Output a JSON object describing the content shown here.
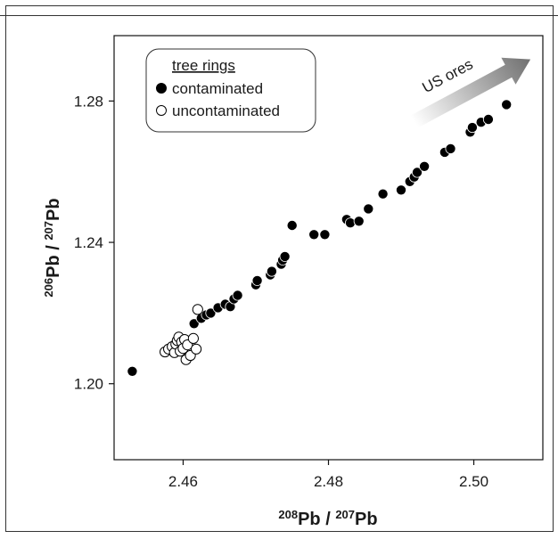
{
  "chart_data": {
    "type": "scatter",
    "xlabel": {
      "sup": "208",
      "main": "Pb / ",
      "sup2": "207",
      "tail": "Pb"
    },
    "ylabel": {
      "sup": "206",
      "main": "Pb / ",
      "sup2": "207",
      "tail": "Pb"
    },
    "xlim": [
      2.4505,
      2.5095
    ],
    "ylim": [
      1.1785,
      1.2985
    ],
    "xticks": [
      2.46,
      2.48,
      2.5
    ],
    "xtick_labels": [
      "2.46",
      "2.48",
      "2.50"
    ],
    "yticks": [
      1.2,
      1.24,
      1.28
    ],
    "ytick_labels": [
      "1.20",
      "1.24",
      "1.28"
    ],
    "grid": false,
    "legend": {
      "title": "tree rings",
      "placement": "top-left",
      "entries": [
        "contaminated",
        "uncontaminated"
      ]
    },
    "annotation": {
      "text": "US ores",
      "placement": "top-right",
      "arrow_from": [
        2.4912,
        1.2735
      ],
      "arrow_to": [
        2.5078,
        1.2918
      ]
    },
    "series": [
      {
        "name": "contaminated",
        "marker": "filled-circle",
        "color": "#000000",
        "points": [
          [
            2.453,
            1.2035
          ],
          [
            2.4615,
            1.217
          ],
          [
            2.4625,
            1.2185
          ],
          [
            2.4632,
            1.2195
          ],
          [
            2.4638,
            1.22
          ],
          [
            2.4648,
            1.2215
          ],
          [
            2.4658,
            1.2225
          ],
          [
            2.4665,
            1.2218
          ],
          [
            2.467,
            1.224
          ],
          [
            2.4675,
            1.225
          ],
          [
            2.47,
            1.228
          ],
          [
            2.4702,
            1.2292
          ],
          [
            2.472,
            1.2308
          ],
          [
            2.4722,
            1.2318
          ],
          [
            2.4735,
            1.2338
          ],
          [
            2.4737,
            1.235
          ],
          [
            2.474,
            1.236
          ],
          [
            2.475,
            1.2448
          ],
          [
            2.478,
            1.2422
          ],
          [
            2.4795,
            1.2422
          ],
          [
            2.4825,
            1.2465
          ],
          [
            2.483,
            1.2455
          ],
          [
            2.4842,
            1.246
          ],
          [
            2.4855,
            1.2495
          ],
          [
            2.4875,
            1.2537
          ],
          [
            2.49,
            1.2548
          ],
          [
            2.4912,
            1.2572
          ],
          [
            2.4918,
            1.2585
          ],
          [
            2.4922,
            1.2598
          ],
          [
            2.4932,
            1.2615
          ],
          [
            2.496,
            1.2655
          ],
          [
            2.4968,
            1.2665
          ],
          [
            2.4995,
            1.2712
          ],
          [
            2.4998,
            1.2725
          ],
          [
            2.501,
            1.274
          ],
          [
            2.502,
            1.2748
          ],
          [
            2.5045,
            1.279
          ]
        ]
      },
      {
        "name": "uncontaminated",
        "marker": "open-circle",
        "color": "#000000",
        "points": [
          [
            2.4575,
            1.209
          ],
          [
            2.458,
            1.2098
          ],
          [
            2.4585,
            1.2105
          ],
          [
            2.4588,
            1.2088
          ],
          [
            2.459,
            1.2112
          ],
          [
            2.4592,
            1.2122
          ],
          [
            2.4594,
            1.2132
          ],
          [
            2.4596,
            1.2092
          ],
          [
            2.4598,
            1.2118
          ],
          [
            2.46,
            1.21
          ],
          [
            2.4602,
            1.2125
          ],
          [
            2.4604,
            1.2068
          ],
          [
            2.4606,
            1.211
          ],
          [
            2.461,
            1.208
          ],
          [
            2.4614,
            1.2128
          ],
          [
            2.4618,
            1.2098
          ],
          [
            2.462,
            1.221
          ]
        ]
      }
    ]
  },
  "colors": {
    "arrow_light": "#ffffff",
    "arrow_dark": "#6f6f6f",
    "marker": "#000000",
    "frame": "#333333"
  }
}
